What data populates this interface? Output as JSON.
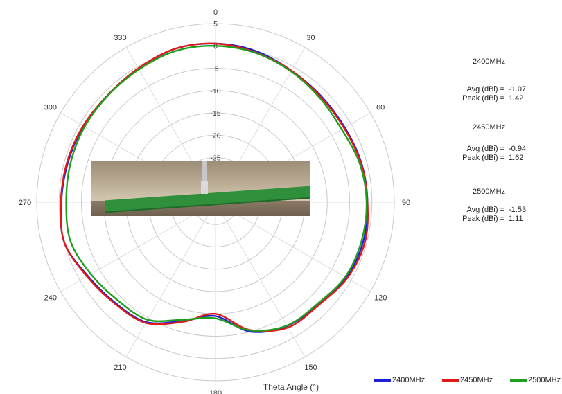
{
  "chart_data": {
    "type": "polar-line",
    "xlabel": "Theta Angle (°)",
    "angle_ticks": [
      0,
      30,
      60,
      90,
      120,
      150,
      180,
      210,
      240,
      270,
      300,
      330
    ],
    "radial_ticks": [
      5,
      0,
      -5,
      -10,
      -15,
      -20,
      -25
    ],
    "rlim": [
      -35,
      5
    ],
    "direction": "clockwise",
    "zero_location": "top",
    "legend_position": "bottom-right",
    "series": [
      {
        "name": "2400MHz",
        "color": "#1f1fd6",
        "theta": [
          0,
          15,
          30,
          45,
          60,
          75,
          90,
          105,
          120,
          135,
          150,
          165,
          180,
          195,
          210,
          225,
          240,
          255,
          270,
          285,
          300,
          315,
          330,
          345
        ],
        "r": [
          0.5,
          0.0,
          -1.0,
          -1.5,
          -1.6,
          -1.2,
          -1.0,
          -0.8,
          -1.2,
          -2.6,
          -3.0,
          -5.0,
          -9.5,
          -7.5,
          -4.0,
          -3.2,
          -2.0,
          0.0,
          -0.5,
          -0.8,
          -0.9,
          -1.0,
          -0.5,
          0.5
        ]
      },
      {
        "name": "2450MHz",
        "color": "#e01a1a",
        "theta": [
          0,
          15,
          30,
          45,
          60,
          75,
          90,
          105,
          120,
          135,
          150,
          165,
          180,
          195,
          210,
          225,
          240,
          255,
          270,
          285,
          300,
          315,
          330,
          345
        ],
        "r": [
          0.5,
          -0.3,
          -1.0,
          -1.7,
          -1.8,
          -1.3,
          -1.0,
          -0.4,
          -1.0,
          -2.4,
          -2.6,
          -5.4,
          -10.0,
          -7.3,
          -3.8,
          -3.0,
          -1.8,
          0.0,
          -0.4,
          -0.6,
          -0.8,
          -1.0,
          -0.4,
          0.5
        ]
      },
      {
        "name": "2500MHz",
        "color": "#1ea01e",
        "theta": [
          0,
          15,
          30,
          45,
          60,
          75,
          90,
          105,
          120,
          135,
          150,
          165,
          180,
          195,
          210,
          225,
          240,
          255,
          270,
          285,
          300,
          315,
          330,
          345
        ],
        "r": [
          0.0,
          -0.4,
          -1.2,
          -2.0,
          -2.4,
          -1.6,
          -1.2,
          -1.2,
          -1.5,
          -2.8,
          -3.1,
          -5.3,
          -9.0,
          -7.8,
          -4.6,
          -4.0,
          -2.8,
          -1.4,
          -1.6,
          -1.4,
          -1.2,
          -1.1,
          -0.7,
          0.0
        ]
      }
    ]
  },
  "stats": [
    {
      "freq": "2400MHz",
      "avg_label": "Avg (dBi) =",
      "avg_value": "-1.07",
      "peak_label": "Peak (dBi) =",
      "peak_value": "1.42"
    },
    {
      "freq": "2450MHz",
      "avg_label": "Avg (dBi) =",
      "avg_value": "-0.94",
      "peak_label": "Peak (dBi) =",
      "peak_value": "1.62"
    },
    {
      "freq": "2500MHz",
      "avg_label": "Avg (dBi) =",
      "avg_value": "-1.53",
      "peak_label": "Peak (dBi) =",
      "peak_value": "1.11"
    }
  ]
}
